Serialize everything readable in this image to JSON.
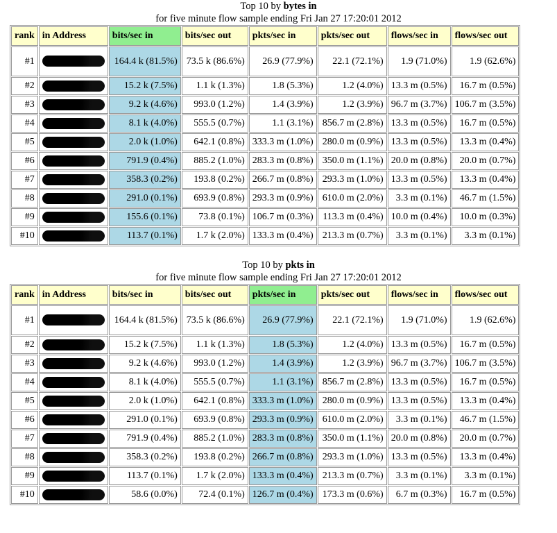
{
  "tables": [
    {
      "title_prefix": "Top 10 by ",
      "title_bold": "bytes in",
      "subtitle": "for five minute flow sample ending Fri Jan 27 17:20:01 2012",
      "headers": [
        "rank",
        "in Address",
        "bits/sec in",
        "bits/sec out",
        "pkts/sec in",
        "pkts/sec out",
        "flows/sec in",
        "flows/sec out"
      ],
      "sorted_column": 2,
      "rows": [
        [
          "#1",
          "",
          "164.4 k (81.5%)",
          "73.5 k (86.6%)",
          "26.9 (77.9%)",
          "22.1 (72.1%)",
          "1.9 (71.0%)",
          "1.9 (62.6%)"
        ],
        [
          "#2",
          "",
          "15.2 k (7.5%)",
          "1.1 k (1.3%)",
          "1.8 (5.3%)",
          "1.2 (4.0%)",
          "13.3 m (0.5%)",
          "16.7 m (0.5%)"
        ],
        [
          "#3",
          "",
          "9.2 k (4.6%)",
          "993.0 (1.2%)",
          "1.4 (3.9%)",
          "1.2 (3.9%)",
          "96.7 m (3.7%)",
          "106.7 m (3.5%)"
        ],
        [
          "#4",
          "",
          "8.1 k (4.0%)",
          "555.5 (0.7%)",
          "1.1 (3.1%)",
          "856.7 m (2.8%)",
          "13.3 m (0.5%)",
          "16.7 m (0.5%)"
        ],
        [
          "#5",
          "",
          "2.0 k (1.0%)",
          "642.1 (0.8%)",
          "333.3 m (1.0%)",
          "280.0 m (0.9%)",
          "13.3 m (0.5%)",
          "13.3 m (0.4%)"
        ],
        [
          "#6",
          "",
          "791.9 (0.4%)",
          "885.2 (1.0%)",
          "283.3 m (0.8%)",
          "350.0 m (1.1%)",
          "20.0 m (0.8%)",
          "20.0 m (0.7%)"
        ],
        [
          "#7",
          "",
          "358.3 (0.2%)",
          "193.8 (0.2%)",
          "266.7 m (0.8%)",
          "293.3 m (1.0%)",
          "13.3 m (0.5%)",
          "13.3 m (0.4%)"
        ],
        [
          "#8",
          "",
          "291.0 (0.1%)",
          "693.9 (0.8%)",
          "293.3 m (0.9%)",
          "610.0 m (2.0%)",
          "3.3 m (0.1%)",
          "46.7 m (1.5%)"
        ],
        [
          "#9",
          "",
          "155.6 (0.1%)",
          "73.8 (0.1%)",
          "106.7 m (0.3%)",
          "113.3 m (0.4%)",
          "10.0 m (0.4%)",
          "10.0 m (0.3%)"
        ],
        [
          "#10",
          "",
          "113.7 (0.1%)",
          "1.7 k (2.0%)",
          "133.3 m (0.4%)",
          "213.3 m (0.7%)",
          "3.3 m (0.1%)",
          "3.3 m (0.1%)"
        ]
      ]
    },
    {
      "title_prefix": "Top 10 by ",
      "title_bold": "pkts in",
      "subtitle": "for five minute flow sample ending Fri Jan 27 17:20:01 2012",
      "headers": [
        "rank",
        "in Address",
        "bits/sec in",
        "bits/sec out",
        "pkts/sec in",
        "pkts/sec out",
        "flows/sec in",
        "flows/sec out"
      ],
      "sorted_column": 4,
      "rows": [
        [
          "#1",
          "",
          "164.4 k (81.5%)",
          "73.5 k (86.6%)",
          "26.9 (77.9%)",
          "22.1 (72.1%)",
          "1.9 (71.0%)",
          "1.9 (62.6%)"
        ],
        [
          "#2",
          "",
          "15.2 k (7.5%)",
          "1.1 k (1.3%)",
          "1.8 (5.3%)",
          "1.2 (4.0%)",
          "13.3 m (0.5%)",
          "16.7 m (0.5%)"
        ],
        [
          "#3",
          "",
          "9.2 k (4.6%)",
          "993.0 (1.2%)",
          "1.4 (3.9%)",
          "1.2 (3.9%)",
          "96.7 m (3.7%)",
          "106.7 m (3.5%)"
        ],
        [
          "#4",
          "",
          "8.1 k (4.0%)",
          "555.5 (0.7%)",
          "1.1 (3.1%)",
          "856.7 m (2.8%)",
          "13.3 m (0.5%)",
          "16.7 m (0.5%)"
        ],
        [
          "#5",
          "",
          "2.0 k (1.0%)",
          "642.1 (0.8%)",
          "333.3 m (1.0%)",
          "280.0 m (0.9%)",
          "13.3 m (0.5%)",
          "13.3 m (0.4%)"
        ],
        [
          "#6",
          "",
          "291.0 (0.1%)",
          "693.9 (0.8%)",
          "293.3 m (0.9%)",
          "610.0 m (2.0%)",
          "3.3 m (0.1%)",
          "46.7 m (1.5%)"
        ],
        [
          "#7",
          "",
          "791.9 (0.4%)",
          "885.2 (1.0%)",
          "283.3 m (0.8%)",
          "350.0 m (1.1%)",
          "20.0 m (0.8%)",
          "20.0 m (0.7%)"
        ],
        [
          "#8",
          "",
          "358.3 (0.2%)",
          "193.8 (0.2%)",
          "266.7 m (0.8%)",
          "293.3 m (1.0%)",
          "13.3 m (0.5%)",
          "13.3 m (0.4%)"
        ],
        [
          "#9",
          "",
          "113.7 (0.1%)",
          "1.7 k (2.0%)",
          "133.3 m (0.4%)",
          "213.3 m (0.7%)",
          "3.3 m (0.1%)",
          "3.3 m (0.1%)"
        ],
        [
          "#10",
          "",
          "58.6 (0.0%)",
          "72.4 (0.1%)",
          "126.7 m (0.4%)",
          "173.3 m (0.6%)",
          "6.7 m (0.3%)",
          "16.7 m (0.5%)"
        ]
      ]
    }
  ],
  "colors": {
    "header_bg": "#ffffcc",
    "sorted_header_bg": "#90ee90",
    "sorted_cell_bg": "#add8e6"
  }
}
